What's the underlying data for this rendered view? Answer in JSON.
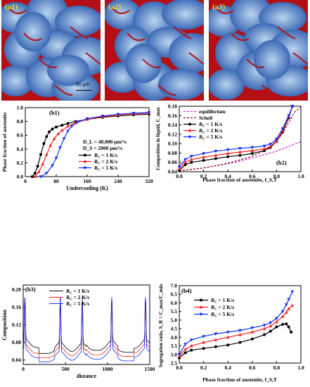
{
  "figure": {
    "micro_panels": [
      {
        "label": "(a1)"
      },
      {
        "label": "(a2)"
      },
      {
        "label": "(a3)"
      }
    ],
    "scale_bar": "50 μm",
    "colors": {
      "liquid": "#b40f14",
      "austenite_dark": "#2f5fb0",
      "austenite_light": "#b9d3ef",
      "black": "#000000",
      "red": "#ff2020",
      "blue": "#1030ff",
      "magenta": "#e020e0",
      "darkred": "#8b1010"
    }
  },
  "chart_data": [
    {
      "id": "b1",
      "label": "(b1)",
      "type": "line",
      "xlabel": "Undercooling (K)",
      "ylabel": "Phase fraction of austenite",
      "xlim": [
        0,
        320
      ],
      "ylim": [
        0.0,
        1.0
      ],
      "xticks": [
        "0",
        "80",
        "160",
        "240",
        "320"
      ],
      "yticks": [
        "0.0",
        "0.2",
        "0.4",
        "0.6",
        "0.8",
        "1.0"
      ],
      "annotation_lines": [
        "D_L = 40,000 μm²/s",
        "D_S = 2000 μm²/s"
      ],
      "legend_position": "center-right",
      "series": [
        {
          "name": "R_C = 1 K/s",
          "color": "#000000",
          "marker": "circle",
          "x": [
            18,
            25,
            32,
            40,
            48,
            55,
            62,
            70,
            80,
            95,
            110,
            130,
            160,
            200,
            240,
            280,
            320
          ],
          "y": [
            0.0,
            0.05,
            0.15,
            0.32,
            0.48,
            0.58,
            0.65,
            0.69,
            0.72,
            0.745,
            0.77,
            0.8,
            0.83,
            0.86,
            0.88,
            0.895,
            0.905
          ]
        },
        {
          "name": "R_C = 2 K/s",
          "color": "#ff2020",
          "marker": "triangle-up",
          "x": [
            25,
            35,
            45,
            55,
            65,
            75,
            85,
            95,
            110,
            130,
            160,
            200,
            240,
            280,
            320
          ],
          "y": [
            0.0,
            0.07,
            0.18,
            0.32,
            0.45,
            0.55,
            0.62,
            0.67,
            0.73,
            0.78,
            0.83,
            0.87,
            0.895,
            0.91,
            0.92
          ]
        },
        {
          "name": "R_C = 5 K/s",
          "color": "#1030ff",
          "marker": "triangle-down",
          "x": [
            40,
            55,
            70,
            80,
            90,
            100,
            110,
            120,
            135,
            160,
            200,
            240,
            280,
            320
          ],
          "y": [
            0.0,
            0.05,
            0.16,
            0.27,
            0.42,
            0.55,
            0.66,
            0.73,
            0.79,
            0.84,
            0.88,
            0.905,
            0.92,
            0.93
          ]
        }
      ]
    },
    {
      "id": "b2",
      "label": "(b2)",
      "type": "line",
      "xlabel": "Phase fraction of austenite, f_S,T",
      "ylabel": "Composition in liquid, C_max",
      "xlim": [
        0.0,
        1.0
      ],
      "ylim": [
        0.04,
        0.18
      ],
      "xticks": [
        "0.0",
        "0.2",
        "0.4",
        "0.6",
        "0.8",
        "1.0"
      ],
      "yticks": [
        "0.04",
        "0.06",
        "0.08",
        "0.10",
        "0.12",
        "0.14",
        "0.16",
        "0.18"
      ],
      "legend_position": "top-left",
      "series": [
        {
          "name": "equilibrium",
          "color": "#e020e0",
          "dash": true,
          "x": [
            0.0,
            0.2,
            0.4,
            0.6,
            0.8,
            1.0
          ],
          "y": [
            0.042,
            0.048,
            0.057,
            0.069,
            0.084,
            0.104
          ]
        },
        {
          "name": "Scheil",
          "color": "#8b1010",
          "dash": true,
          "x": [
            0.0,
            0.2,
            0.4,
            0.6,
            0.7,
            0.8,
            0.85,
            0.9,
            0.95,
            1.0
          ],
          "y": [
            0.042,
            0.048,
            0.058,
            0.073,
            0.085,
            0.105,
            0.122,
            0.145,
            0.168,
            0.178
          ]
        },
        {
          "name": "R_C = 1 K/s",
          "color": "#000000",
          "marker": "circle",
          "x": [
            0.0,
            0.05,
            0.1,
            0.2,
            0.3,
            0.4,
            0.5,
            0.6,
            0.7,
            0.75,
            0.8,
            0.85,
            0.9,
            0.93
          ],
          "y": [
            0.042,
            0.055,
            0.06,
            0.064,
            0.068,
            0.072,
            0.075,
            0.079,
            0.085,
            0.092,
            0.105,
            0.125,
            0.155,
            0.18
          ]
        },
        {
          "name": "R_C = 2 K/s",
          "color": "#ff2020",
          "marker": "triangle-up",
          "x": [
            0.0,
            0.05,
            0.1,
            0.2,
            0.3,
            0.4,
            0.5,
            0.6,
            0.7,
            0.75,
            0.8,
            0.85,
            0.9,
            0.93
          ],
          "y": [
            0.046,
            0.06,
            0.066,
            0.071,
            0.075,
            0.079,
            0.082,
            0.085,
            0.089,
            0.094,
            0.106,
            0.128,
            0.158,
            0.18
          ]
        },
        {
          "name": "R_C = 5 K/s",
          "color": "#1030ff",
          "marker": "triangle-down",
          "x": [
            0.0,
            0.05,
            0.1,
            0.2,
            0.3,
            0.4,
            0.5,
            0.6,
            0.7,
            0.75,
            0.8,
            0.85,
            0.9,
            0.93
          ],
          "y": [
            0.05,
            0.066,
            0.073,
            0.079,
            0.084,
            0.087,
            0.09,
            0.092,
            0.095,
            0.099,
            0.11,
            0.132,
            0.16,
            0.18
          ]
        }
      ]
    },
    {
      "id": "b3",
      "label": "(b3)",
      "type": "line",
      "xlabel": "distance",
      "ylabel": "Composition",
      "xlim": [
        0,
        1500
      ],
      "ylim": [
        0.03,
        0.21
      ],
      "xticks": [
        "0",
        "500",
        "1000",
        "1500"
      ],
      "yticks": [
        "0.04",
        "0.08",
        "0.12",
        "0.16",
        "0.20"
      ],
      "legend_position": "top-center",
      "peaks": [
        20,
        440,
        700,
        1050,
        1450
      ],
      "series": [
        {
          "name": "R_C = 1 K/s",
          "color": "#000000",
          "base": [
            0.068,
            0.055,
            0.06,
            0.058,
            0.062,
            0.064,
            0.058,
            0.066
          ]
        },
        {
          "name": "R_C = 2 K/s",
          "color": "#ff2020",
          "base": [
            0.055,
            0.045,
            0.05,
            0.048,
            0.052,
            0.054,
            0.048,
            0.056
          ]
        },
        {
          "name": "R_C = 5 K/s",
          "color": "#1030ff",
          "base": [
            0.045,
            0.036,
            0.04,
            0.038,
            0.042,
            0.044,
            0.038,
            0.046
          ]
        }
      ]
    },
    {
      "id": "b4",
      "label": "(b4)",
      "type": "line",
      "xlabel": "Phase fraction of austenite, f_S,T",
      "ylabel": "Segregation ratio, S_R = C_max/C_min",
      "xlim": [
        0.0,
        1.0
      ],
      "ylim": [
        2.5,
        7.0
      ],
      "xticks": [
        "0.0",
        "0.2",
        "0.4",
        "0.6",
        "0.8",
        "1.0"
      ],
      "yticks": [
        "2.5",
        "3.0",
        "3.5",
        "4.0",
        "4.5",
        "5.0",
        "5.5",
        "6.0",
        "6.5",
        "7.0"
      ],
      "legend_position": "top-left",
      "series": [
        {
          "name": "R_C = 1 K/s",
          "color": "#000000",
          "marker": "circle",
          "x": [
            0.0,
            0.05,
            0.1,
            0.2,
            0.3,
            0.4,
            0.5,
            0.6,
            0.7,
            0.75,
            0.8,
            0.85,
            0.88,
            0.9,
            0.92
          ],
          "y": [
            2.8,
            3.1,
            3.25,
            3.35,
            3.45,
            3.55,
            3.7,
            3.9,
            4.15,
            4.35,
            4.6,
            4.75,
            4.78,
            4.6,
            4.3
          ]
        },
        {
          "name": "R_C = 2 K/s",
          "color": "#ff2020",
          "marker": "triangle-up",
          "x": [
            0.0,
            0.05,
            0.1,
            0.2,
            0.3,
            0.4,
            0.5,
            0.6,
            0.7,
            0.75,
            0.8,
            0.85,
            0.88,
            0.9,
            0.93
          ],
          "y": [
            2.9,
            3.3,
            3.5,
            3.7,
            3.85,
            4.0,
            4.15,
            4.3,
            4.5,
            4.65,
            4.9,
            5.2,
            5.45,
            5.65,
            5.85
          ]
        },
        {
          "name": "R_C = 5 K/s",
          "color": "#1030ff",
          "marker": "triangle-down",
          "x": [
            0.0,
            0.05,
            0.1,
            0.2,
            0.3,
            0.4,
            0.5,
            0.6,
            0.7,
            0.75,
            0.8,
            0.85,
            0.88,
            0.9,
            0.93
          ],
          "y": [
            3.0,
            3.6,
            3.85,
            4.05,
            4.2,
            4.3,
            4.4,
            4.55,
            4.7,
            4.85,
            5.1,
            5.5,
            5.9,
            6.2,
            6.65
          ]
        }
      ]
    }
  ]
}
